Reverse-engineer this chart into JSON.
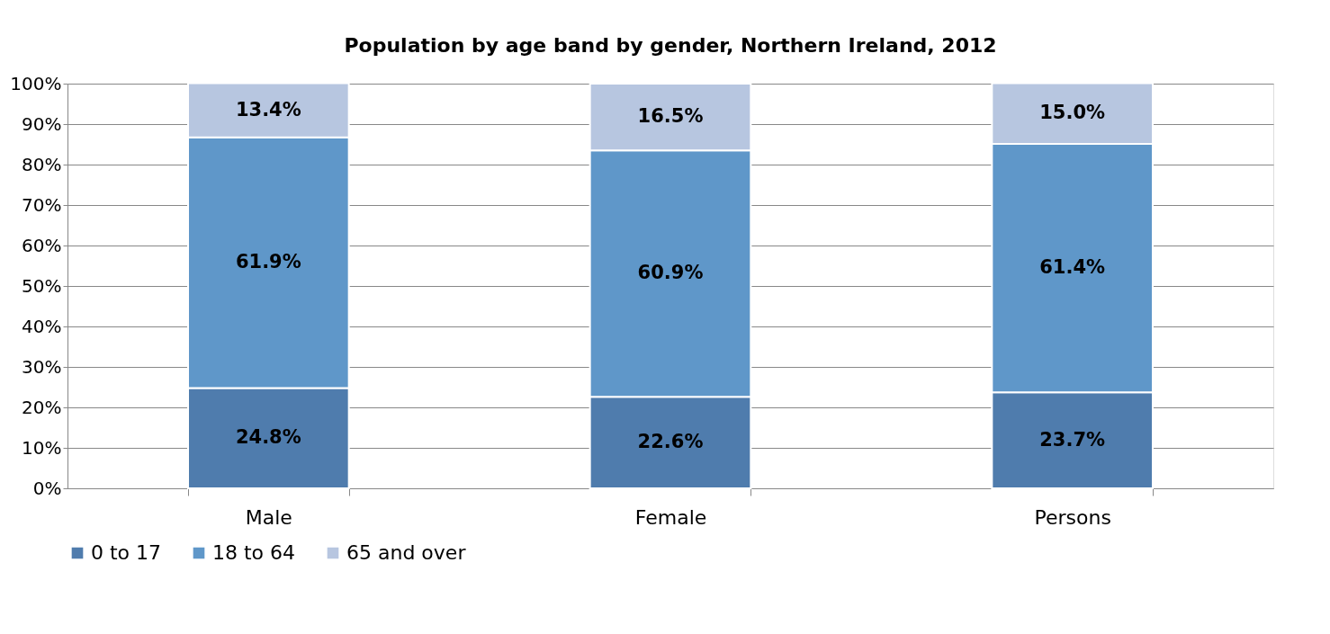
{
  "chart_data": {
    "type": "bar",
    "title": "Population by age band by gender, Northern Ireland, 2012",
    "categories": [
      "Male",
      "Female",
      "Persons"
    ],
    "stacked": true,
    "series": [
      {
        "name": "0 to 17",
        "color": "#4f7cad",
        "values": [
          24.8,
          22.6,
          23.7
        ],
        "value_labels": [
          "24.8%",
          "22.6%",
          "23.7%"
        ]
      },
      {
        "name": "18 to 64",
        "color": "#5f97c9",
        "values": [
          61.9,
          60.9,
          61.4
        ],
        "value_labels": [
          "61.9%",
          "60.9%",
          "61.4%"
        ]
      },
      {
        "name": "65 and over",
        "color": "#b7c6e0",
        "values": [
          13.4,
          16.5,
          15.0
        ],
        "value_labels": [
          "13.4%",
          "16.5%",
          "15.0%"
        ]
      }
    ],
    "ylim": [
      0,
      100
    ],
    "yticks": [
      {
        "value": 0,
        "label": "0%"
      },
      {
        "value": 10,
        "label": "10%"
      },
      {
        "value": 20,
        "label": "20%"
      },
      {
        "value": 30,
        "label": "30%"
      },
      {
        "value": 40,
        "label": "40%"
      },
      {
        "value": 50,
        "label": "50%"
      },
      {
        "value": 60,
        "label": "60%"
      },
      {
        "value": 70,
        "label": "70%"
      },
      {
        "value": 80,
        "label": "80%"
      },
      {
        "value": 90,
        "label": "90%"
      },
      {
        "value": 100,
        "label": "100%"
      }
    ],
    "grid": "y",
    "legend": "bottom"
  }
}
